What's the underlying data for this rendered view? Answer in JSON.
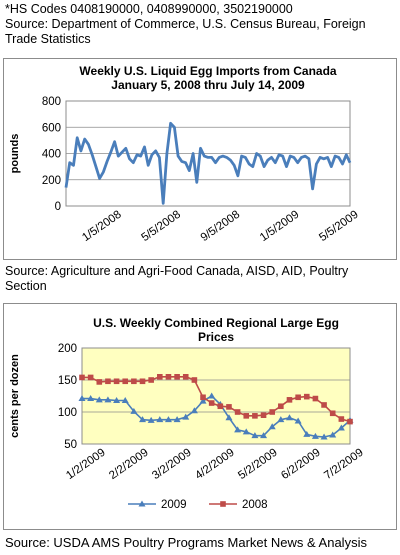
{
  "header": {
    "hs_codes": "*HS Codes 0408190000, 0408990000, 3502190000",
    "source_line1": "Source:  Department of Commerce, U.S. Census Bureau, Foreign",
    "source_line2": "Trade Statistics"
  },
  "middle_source": {
    "line1": "Source:  Agriculture and Agri-Food Canada, AISD, AID, Poultry",
    "line2": "Section"
  },
  "footer": {
    "source": "Source: USDA AMS Poultry Programs Market News & Analysis"
  },
  "colors": {
    "plot_bg": "#ffffc0",
    "series_blue": "#4a7ebb",
    "series_red": "#be4b48"
  },
  "chart_data": [
    {
      "type": "line",
      "title": "Weekly U.S. Liquid Egg Imports from Canada",
      "subtitle": "January 5, 2008 thru July 14, 2009",
      "xlabel": "",
      "ylabel": "pounds",
      "ylim": [
        0,
        800
      ],
      "yticks": [
        0,
        200,
        400,
        600,
        800
      ],
      "xtick_labels": [
        "1/5/2008",
        "5/5/2008",
        "9/5/2008",
        "1/5/2009",
        "5/5/2009"
      ],
      "grid": true,
      "legend": "none",
      "series": [
        {
          "values": [
            140,
            330,
            310,
            520,
            420,
            510,
            470,
            390,
            300,
            210,
            260,
            340,
            410,
            490,
            380,
            410,
            440,
            360,
            330,
            390,
            380,
            450,
            310,
            390,
            420,
            370,
            20,
            400,
            630,
            600,
            380,
            340,
            330,
            270,
            400,
            180,
            440,
            380,
            370,
            370,
            330,
            370,
            380,
            370,
            350,
            310,
            230,
            380,
            370,
            320,
            300,
            400,
            380,
            300,
            350,
            370,
            330,
            390,
            380,
            300,
            380,
            370,
            330,
            370,
            380,
            360,
            130,
            320,
            370,
            360,
            370,
            300,
            380,
            370,
            320,
            390,
            330
          ]
        }
      ]
    },
    {
      "type": "line",
      "title": "U.S. Weekly Combined Regional Large Egg",
      "subtitle": "Prices",
      "xlabel": "",
      "ylabel": "cents per dozen",
      "ylim": [
        50,
        200
      ],
      "yticks": [
        50,
        100,
        150,
        200
      ],
      "xtick_labels": [
        "1/2/2009",
        "2/2/2009",
        "3/2/2009",
        "4/2/2009",
        "5/2/2009",
        "6/2/2009",
        "7/2/2009"
      ],
      "grid": true,
      "legend": "bottom",
      "series": [
        {
          "name": "2009",
          "values": [
            121,
            121,
            119,
            119,
            118,
            118,
            101,
            88,
            87,
            88,
            88,
            88,
            92,
            102,
            117,
            125,
            112,
            91,
            72,
            69,
            63,
            63,
            77,
            88,
            91,
            86,
            65,
            62,
            61,
            64,
            75,
            87
          ]
        },
        {
          "name": "2008",
          "values": [
            154,
            154,
            147,
            148,
            148,
            148,
            148,
            148,
            150,
            155,
            155,
            155,
            155,
            150,
            123,
            114,
            109,
            108,
            100,
            94,
            94,
            95,
            100,
            109,
            119,
            123,
            124,
            121,
            111,
            98,
            89,
            85
          ]
        }
      ]
    }
  ]
}
